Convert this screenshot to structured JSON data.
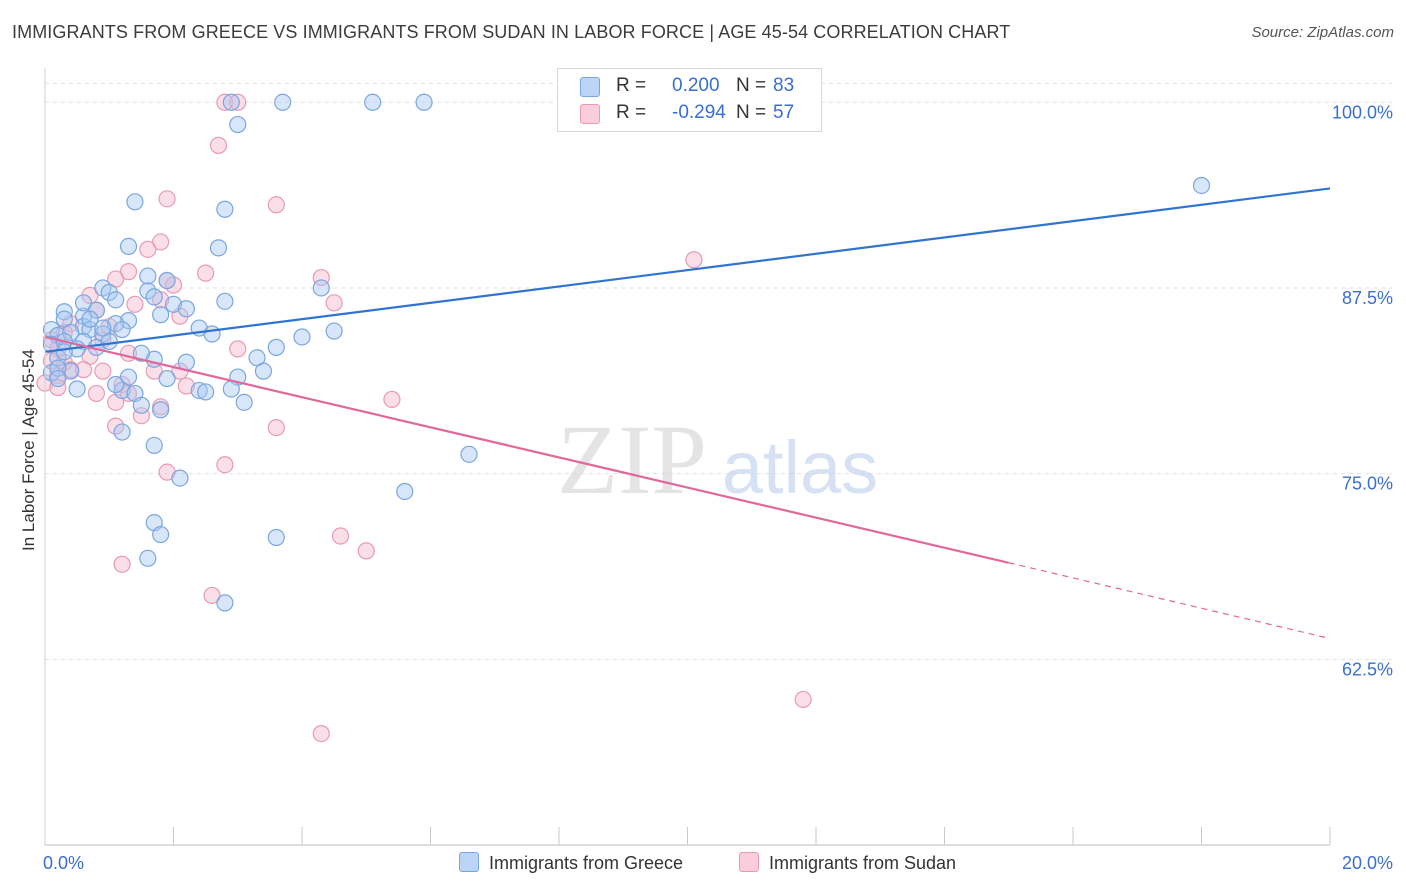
{
  "title": "IMMIGRANTS FROM GREECE VS IMMIGRANTS FROM SUDAN IN LABOR FORCE | AGE 45-54 CORRELATION CHART",
  "source": "Source: ZipAtlas.com",
  "watermark": {
    "zip": "ZIP",
    "atlas": "atlas"
  },
  "colors": {
    "blue_fill": "#a9c8f2",
    "blue_stroke": "#7aa6e0",
    "blue_line": "#2f74d0",
    "pink_fill": "#f6b9cc",
    "pink_stroke": "#e99ab4",
    "pink_line": "#e0699a",
    "axis_label": "#3a6fd0",
    "grid": "#e2e2e2"
  },
  "legend": {
    "rows": [
      {
        "r_label": "R =",
        "r_value": "0.200",
        "n_label": "N =",
        "n_value": "83"
      },
      {
        "r_label": "R =",
        "r_value": "-0.294",
        "n_label": "N =",
        "n_value": "57"
      }
    ],
    "bottom": [
      "Immigrants from Greece",
      "Immigrants from Sudan"
    ]
  },
  "chart_data": {
    "type": "scatter",
    "title": "IMMIGRANTS FROM GREECE VS IMMIGRANTS FROM SUDAN IN LABOR FORCE | AGE 45-54 CORRELATION CHART",
    "xlabel": "",
    "ylabel": "In Labor Force | Age 45-54",
    "xlim": [
      0,
      20
    ],
    "ylim": [
      50,
      101.5
    ],
    "x_tick_labels": [
      "0.0%",
      "20.0%"
    ],
    "y_ticks": [
      62.5,
      75.0,
      87.5,
      100.0
    ],
    "y_tick_labels": [
      "62.5%",
      "75.0%",
      "87.5%",
      "100.0%"
    ],
    "series": [
      {
        "name": "Immigrants from Greece",
        "color": "blue",
        "r": 0.2,
        "n": 83,
        "trend": {
          "x": [
            0.0,
            20.0
          ],
          "y": [
            83.2,
            94.2
          ]
        },
        "points": [
          [
            2.9,
            100.0
          ],
          [
            3.7,
            100.0
          ],
          [
            5.1,
            100.0
          ],
          [
            5.9,
            100.0
          ],
          [
            3.0,
            98.5
          ],
          [
            1.4,
            93.3
          ],
          [
            2.8,
            92.8
          ],
          [
            1.3,
            90.3
          ],
          [
            2.7,
            90.2
          ],
          [
            1.6,
            88.3
          ],
          [
            1.9,
            88.0
          ],
          [
            4.3,
            87.5
          ],
          [
            0.9,
            87.5
          ],
          [
            1.0,
            87.2
          ],
          [
            1.6,
            87.3
          ],
          [
            1.1,
            86.7
          ],
          [
            2.0,
            86.4
          ],
          [
            2.8,
            86.6
          ],
          [
            1.7,
            86.9
          ],
          [
            0.8,
            86.0
          ],
          [
            0.3,
            85.9
          ],
          [
            0.6,
            85.6
          ],
          [
            1.3,
            85.3
          ],
          [
            0.3,
            85.4
          ],
          [
            0.6,
            84.9
          ],
          [
            1.1,
            85.1
          ],
          [
            0.1,
            84.7
          ],
          [
            0.2,
            84.3
          ],
          [
            0.4,
            84.5
          ],
          [
            0.7,
            84.7
          ],
          [
            0.9,
            84.4
          ],
          [
            1.2,
            84.7
          ],
          [
            2.4,
            84.8
          ],
          [
            2.6,
            84.4
          ],
          [
            4.5,
            84.6
          ],
          [
            0.1,
            83.7
          ],
          [
            0.3,
            83.9
          ],
          [
            0.6,
            83.9
          ],
          [
            0.8,
            83.5
          ],
          [
            1.0,
            83.9
          ],
          [
            0.2,
            82.8
          ],
          [
            1.7,
            82.7
          ],
          [
            2.2,
            82.5
          ],
          [
            3.3,
            82.8
          ],
          [
            0.1,
            81.8
          ],
          [
            0.4,
            81.9
          ],
          [
            1.3,
            81.5
          ],
          [
            1.9,
            81.4
          ],
          [
            3.4,
            81.9
          ],
          [
            3.0,
            81.5
          ],
          [
            0.5,
            80.7
          ],
          [
            1.2,
            80.6
          ],
          [
            1.4,
            80.4
          ],
          [
            2.4,
            80.6
          ],
          [
            2.5,
            80.5
          ],
          [
            1.5,
            79.6
          ],
          [
            1.8,
            79.3
          ],
          [
            3.1,
            79.8
          ],
          [
            1.2,
            77.8
          ],
          [
            1.7,
            76.9
          ],
          [
            6.6,
            76.3
          ],
          [
            2.1,
            74.7
          ],
          [
            5.6,
            73.8
          ],
          [
            1.7,
            71.7
          ],
          [
            1.8,
            70.9
          ],
          [
            3.6,
            70.7
          ],
          [
            1.6,
            69.3
          ],
          [
            2.8,
            66.3
          ],
          [
            18.0,
            94.4
          ],
          [
            0.2,
            82.1
          ],
          [
            0.5,
            83.4
          ],
          [
            2.2,
            86.1
          ],
          [
            0.9,
            84.8
          ],
          [
            1.5,
            83.1
          ],
          [
            0.3,
            83.2
          ],
          [
            0.7,
            85.4
          ],
          [
            4.0,
            84.2
          ],
          [
            1.1,
            81.0
          ],
          [
            2.9,
            80.7
          ],
          [
            0.6,
            86.5
          ],
          [
            1.8,
            85.7
          ],
          [
            0.2,
            81.4
          ],
          [
            3.6,
            83.5
          ]
        ]
      },
      {
        "name": "Immigrants from Sudan",
        "color": "pink",
        "r": -0.294,
        "n": 57,
        "trend": {
          "x": [
            0.0,
            15.0
          ],
          "y": [
            84.2,
            69.0
          ]
        },
        "trend_dashed": {
          "x": [
            15.0,
            20.0
          ],
          "y": [
            69.0,
            63.9
          ]
        },
        "points": [
          [
            2.8,
            100.0
          ],
          [
            3.0,
            100.0
          ],
          [
            2.7,
            97.1
          ],
          [
            1.9,
            93.5
          ],
          [
            3.6,
            93.1
          ],
          [
            1.8,
            90.6
          ],
          [
            1.6,
            90.1
          ],
          [
            10.1,
            89.4
          ],
          [
            1.3,
            88.6
          ],
          [
            2.5,
            88.5
          ],
          [
            4.3,
            88.2
          ],
          [
            1.9,
            88.0
          ],
          [
            1.1,
            88.1
          ],
          [
            2.0,
            87.7
          ],
          [
            0.7,
            87.0
          ],
          [
            1.8,
            86.7
          ],
          [
            4.5,
            86.5
          ],
          [
            1.4,
            86.4
          ],
          [
            0.8,
            86.0
          ],
          [
            2.1,
            85.6
          ],
          [
            0.4,
            85.1
          ],
          [
            1.0,
            84.9
          ],
          [
            0.3,
            84.5
          ],
          [
            0.1,
            84.0
          ],
          [
            0.9,
            84.0
          ],
          [
            3.0,
            83.4
          ],
          [
            0.2,
            83.4
          ],
          [
            1.3,
            83.1
          ],
          [
            0.7,
            82.9
          ],
          [
            0.3,
            82.5
          ],
          [
            0.4,
            82.0
          ],
          [
            0.6,
            82.0
          ],
          [
            0.9,
            81.9
          ],
          [
            1.7,
            81.9
          ],
          [
            2.1,
            81.9
          ],
          [
            0.2,
            81.6
          ],
          [
            0.0,
            81.1
          ],
          [
            1.2,
            81.0
          ],
          [
            2.2,
            80.9
          ],
          [
            0.2,
            80.8
          ],
          [
            0.8,
            80.4
          ],
          [
            1.3,
            80.4
          ],
          [
            5.4,
            80.0
          ],
          [
            1.1,
            79.8
          ],
          [
            1.8,
            79.5
          ],
          [
            1.5,
            78.9
          ],
          [
            1.1,
            78.2
          ],
          [
            3.6,
            78.1
          ],
          [
            2.8,
            75.6
          ],
          [
            1.9,
            75.1
          ],
          [
            4.6,
            70.8
          ],
          [
            5.0,
            69.8
          ],
          [
            1.2,
            68.9
          ],
          [
            2.6,
            66.8
          ],
          [
            11.8,
            59.8
          ],
          [
            4.3,
            57.5
          ],
          [
            0.1,
            82.6
          ]
        ]
      }
    ]
  }
}
